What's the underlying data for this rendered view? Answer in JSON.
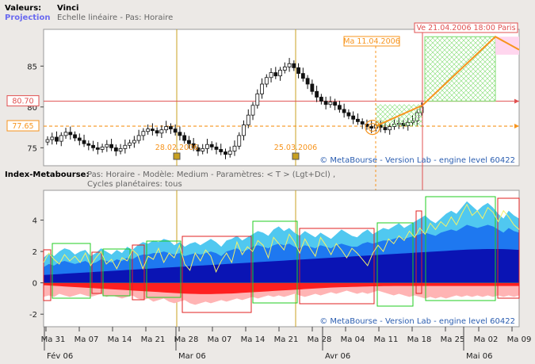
{
  "header": {
    "valeurs_label": "Valeurs:",
    "valeurs_value": "Vinci",
    "projection_label": "Projection",
    "projection_value": "Echelle linéaire  -  Pas: Horaire",
    "index_label": "Index-Metabourse:",
    "index_params": "Pas: Horaire  -  Modèle: Medium  -  Paramètres:  < T > (Lgt+Dcl) ,",
    "index_cycles": "Cycles planétaires:  tous"
  },
  "colors": {
    "background": "#ece9e6",
    "plot_bg": "#ffffff",
    "candle_up": "#ffffff",
    "candle_down": "#111111",
    "orange": "#f7941d",
    "red_line": "#e05050",
    "green_box": "#7fdc6f",
    "vline": "#c8a020",
    "blue_dark": "#0a14b4",
    "blue_mid": "#1e78f0",
    "blue_light": "#50c8f0",
    "red_fill": "#ff2020",
    "pink_fill": "#ffb4b4",
    "footer_text": "#2a5db0"
  },
  "chart_data": [
    {
      "type": "candlestick",
      "title": "Vinci",
      "y_ticks": [
        75,
        80,
        85
      ],
      "ylim": [
        72.8,
        89.5
      ],
      "x_categories": [
        "Ma 31",
        "Ma 07",
        "Ma 14",
        "Ma 21",
        "Ma 28",
        "Ma 07",
        "Ma 14",
        "Ma 21",
        "Ma 28",
        "Ma 04",
        "Ma 11",
        "Ma 18",
        "Ma 25",
        "Ma 02",
        "Ma 09"
      ],
      "months": [
        "Fév 06",
        "Mar 06",
        "Avr 06",
        "Mai 06"
      ],
      "annotations": {
        "vline_1": "28.02.2006",
        "vline_2": "25.03.2006",
        "current_price_label": "77.65",
        "target_level_label": "80.70",
        "projection_start_label": "Ma 11.04.2006",
        "projection_end_label": "Ve 21.04.2006 18:00 Paris"
      },
      "levels": {
        "current_price": 77.65,
        "target": 80.7
      },
      "candles_close": [
        76.0,
        76.3,
        75.8,
        76.5,
        76.9,
        76.6,
        76.2,
        75.9,
        75.5,
        75.3,
        75.0,
        74.8,
        75.1,
        75.4,
        75.0,
        74.6,
        74.9,
        75.3,
        75.6,
        75.9,
        76.5,
        77.0,
        77.3,
        77.1,
        76.8,
        77.2,
        77.6,
        77.3,
        76.9,
        76.5,
        75.9,
        75.5,
        75.0,
        74.6,
        74.9,
        75.4,
        75.1,
        74.8,
        74.5,
        74.2,
        74.6,
        75.2,
        76.5,
        77.8,
        79.0,
        80.2,
        81.6,
        82.8,
        83.6,
        84.2,
        83.8,
        84.5,
        84.9,
        85.3,
        84.8,
        84.1,
        83.5,
        82.8,
        81.9,
        81.2,
        80.7,
        80.3,
        80.6,
        80.2,
        79.7,
        79.3,
        78.9,
        78.5,
        78.2,
        77.9,
        77.6,
        77.4,
        77.8,
        77.5,
        77.2,
        77.6,
        77.9,
        78.0,
        77.7,
        78.1,
        78.3,
        79.3,
        80.0
      ],
      "projection_path": [
        [
          0,
          77.65
        ],
        [
          1,
          80.2
        ],
        [
          2,
          88.6
        ],
        [
          3,
          87.0
        ]
      ],
      "projection_box": {
        "from": "Ma 11.04.2006",
        "to": "Ve 21.04.2006",
        "low": 80.7,
        "high": 88.6
      },
      "footer": "© MetaBourse - Version Lab - engine level 60422"
    },
    {
      "type": "area",
      "title": "Index-Metabourse",
      "y_ticks": [
        -2,
        0,
        2,
        4
      ],
      "ylim": [
        -2.8,
        5.9
      ],
      "series": [
        {
          "color": "#50c8f0",
          "values": [
            1.6,
            1.9,
            1.7,
            2.0,
            2.2,
            2.1,
            1.8,
            2.0,
            2.1,
            1.7,
            1.9,
            2.2,
            2.0,
            1.8,
            2.1,
            1.9,
            2.3,
            2.1,
            2.4,
            2.6,
            2.5,
            2.7,
            2.6,
            2.8,
            2.7,
            2.4,
            2.6,
            2.3,
            2.5,
            2.6,
            2.4,
            2.6,
            2.8,
            2.6,
            2.3,
            2.7,
            2.8,
            3.0,
            2.7,
            2.9,
            3.1,
            3.3,
            3.2,
            3.0,
            3.4,
            3.6,
            3.3,
            3.5,
            3.2,
            3.0,
            3.3,
            3.1,
            2.9,
            3.2,
            3.0,
            2.8,
            3.1,
            3.4,
            3.2,
            3.0,
            2.9,
            3.2,
            3.4,
            3.1,
            3.3,
            3.5,
            3.4,
            3.6,
            3.8,
            3.5,
            3.7,
            3.9,
            4.1,
            4.3,
            4.0,
            3.8,
            4.1,
            4.4,
            4.6,
            4.4,
            4.8,
            5.2,
            4.9,
            4.6,
            4.9,
            5.1,
            4.8,
            4.4,
            4.1,
            4.6,
            4.3,
            4.1
          ]
        },
        {
          "color": "#1e78f0",
          "values": [
            1.0,
            1.2,
            1.1,
            1.3,
            1.4,
            1.3,
            1.2,
            1.3,
            1.4,
            1.2,
            1.3,
            1.5,
            1.4,
            1.3,
            1.5,
            1.4,
            1.6,
            1.5,
            1.7,
            1.8,
            1.8,
            1.9,
            1.9,
            2.0,
            1.9,
            1.8,
            1.9,
            1.7,
            1.8,
            1.9,
            1.8,
            1.9,
            2.0,
            1.9,
            1.7,
            2.0,
            2.1,
            2.2,
            2.0,
            2.1,
            2.3,
            2.4,
            2.3,
            2.2,
            2.4,
            2.5,
            2.4,
            2.5,
            2.3,
            2.2,
            2.4,
            2.3,
            2.2,
            2.4,
            2.3,
            2.2,
            2.4,
            2.5,
            2.4,
            2.3,
            2.3,
            2.5,
            2.6,
            2.5,
            2.6,
            2.7,
            2.7,
            2.8,
            2.9,
            2.8,
            2.9,
            3.0,
            3.1,
            3.2,
            3.1,
            3.0,
            3.2,
            3.3,
            3.4,
            3.3,
            3.5,
            3.7,
            3.6,
            3.5,
            3.6,
            3.7,
            3.6,
            3.4,
            3.2,
            3.5,
            3.3,
            3.2
          ]
        },
        {
          "color": "#0a14b4",
          "values": [
            0.5,
            0.52,
            0.54,
            0.56,
            0.58,
            0.6,
            0.62,
            0.64,
            0.66,
            0.68,
            0.7,
            0.72,
            0.74,
            0.76,
            0.78,
            0.8,
            0.82,
            0.84,
            0.86,
            0.88,
            0.9,
            0.92,
            0.94,
            0.96,
            0.98,
            1.0,
            1.02,
            1.04,
            1.06,
            1.08,
            1.1,
            1.12,
            1.14,
            1.16,
            1.18,
            1.2,
            1.22,
            1.24,
            1.26,
            1.28,
            1.3,
            1.32,
            1.34,
            1.36,
            1.38,
            1.4,
            1.42,
            1.44,
            1.46,
            1.48,
            1.5,
            1.52,
            1.54,
            1.56,
            1.58,
            1.6,
            1.62,
            1.64,
            1.66,
            1.68,
            1.7,
            1.72,
            1.74,
            1.76,
            1.78,
            1.8,
            1.82,
            1.84,
            1.86,
            1.88,
            1.9,
            1.92,
            1.94,
            1.96,
            1.98,
            2.0,
            2.02,
            2.04,
            2.06,
            2.08,
            2.1,
            2.12,
            2.13,
            2.14,
            2.15,
            2.16,
            2.16,
            2.16,
            2.15,
            2.14,
            2.12,
            2.1
          ]
        },
        {
          "color": "#ffb4b4",
          "values": [
            -0.9,
            -0.8,
            -0.9,
            -0.7,
            -0.8,
            -0.9,
            -0.8,
            -0.7,
            -0.8,
            -0.9,
            -0.8,
            -0.7,
            -0.9,
            -0.8,
            -0.9,
            -1.0,
            -0.9,
            -0.8,
            -1.0,
            -1.1,
            -1.0,
            -1.2,
            -1.1,
            -1.0,
            -1.2,
            -1.3,
            -1.2,
            -1.1,
            -1.3,
            -1.4,
            -1.3,
            -1.2,
            -1.3,
            -1.2,
            -1.1,
            -1.2,
            -1.1,
            -1.0,
            -1.1,
            -1.0,
            -0.9,
            -1.0,
            -0.9,
            -0.8,
            -0.9,
            -0.8,
            -0.9,
            -0.8,
            -0.7,
            -0.8,
            -0.9,
            -0.8,
            -0.7,
            -0.8,
            -0.7,
            -0.6,
            -0.7,
            -0.6,
            -0.5,
            -0.6,
            -0.7,
            -0.6,
            -0.7,
            -0.6,
            -0.5,
            -0.6,
            -0.7,
            -0.8,
            -0.7,
            -0.8,
            -0.9,
            -0.8,
            -0.9,
            -1.0,
            -0.9,
            -1.0,
            -0.9,
            -1.0,
            -0.9,
            -0.8,
            -0.9,
            -0.8,
            -0.9,
            -0.8,
            -0.9,
            -0.8,
            -0.9,
            -0.8,
            -0.9,
            -0.8,
            -0.9,
            -0.8
          ]
        },
        {
          "color": "#ff2020",
          "values": [
            -0.15,
            -0.17,
            -0.19,
            -0.21,
            -0.23,
            -0.25,
            -0.27,
            -0.29,
            -0.31,
            -0.33,
            -0.35,
            -0.37,
            -0.39,
            -0.41,
            -0.43,
            -0.45,
            -0.47,
            -0.49,
            -0.51,
            -0.53,
            -0.55,
            -0.57,
            -0.59,
            -0.61,
            -0.63,
            -0.65,
            -0.67,
            -0.69,
            -0.7,
            -0.71,
            -0.72,
            -0.72,
            -0.72,
            -0.71,
            -0.7,
            -0.69,
            -0.68,
            -0.66,
            -0.64,
            -0.62,
            -0.6,
            -0.58,
            -0.56,
            -0.54,
            -0.52,
            -0.5,
            -0.48,
            -0.46,
            -0.44,
            -0.42,
            -0.4,
            -0.38,
            -0.36,
            -0.34,
            -0.32,
            -0.3,
            -0.29,
            -0.28,
            -0.27,
            -0.26,
            -0.25,
            -0.24,
            -0.23,
            -0.22,
            -0.22,
            -0.21,
            -0.21,
            -0.2,
            -0.2,
            -0.2,
            -0.2,
            -0.2,
            -0.2,
            -0.2,
            -0.2,
            -0.2,
            -0.2,
            -0.2,
            -0.2,
            -0.2,
            -0.2,
            -0.2,
            -0.2,
            -0.2,
            -0.2,
            -0.2,
            -0.2,
            -0.2,
            -0.2,
            -0.2,
            -0.2,
            -0.2
          ]
        }
      ],
      "yellow_line": [
        1.3,
        1.9,
        1.5,
        1.2,
        1.8,
        1.4,
        1.7,
        1.3,
        1.9,
        1.1,
        1.6,
        2.0,
        1.2,
        1.5,
        0.9,
        1.6,
        1.4,
        2.1,
        1.8,
        0.9,
        1.7,
        1.5,
        2.2,
        1.3,
        1.9,
        1.6,
        2.4,
        1.2,
        0.8,
        1.9,
        1.4,
        2.1,
        1.7,
        0.7,
        1.4,
        1.9,
        1.3,
        2.6,
        1.8,
        2.3,
        2.0,
        2.7,
        2.4,
        1.6,
        2.9,
        2.5,
        2.1,
        3.1,
        2.6,
        1.9,
        2.8,
        2.2,
        1.7,
        2.9,
        2.4,
        1.8,
        2.5,
        2.1,
        1.6,
        2.2,
        1.9,
        1.5,
        1.1,
        1.9,
        2.4,
        2.0,
        2.8,
        2.5,
        3.0,
        2.7,
        3.3,
        2.9,
        3.5,
        3.1,
        3.8,
        3.4,
        3.9,
        3.6,
        4.2,
        3.7,
        4.4,
        5.0,
        4.3,
        4.6,
        4.1,
        4.8,
        4.5,
        3.9,
        4.6,
        4.2,
        3.7,
        3.4
      ],
      "footer": "© MetaBourse - Version Lab - engine level 60422"
    }
  ]
}
